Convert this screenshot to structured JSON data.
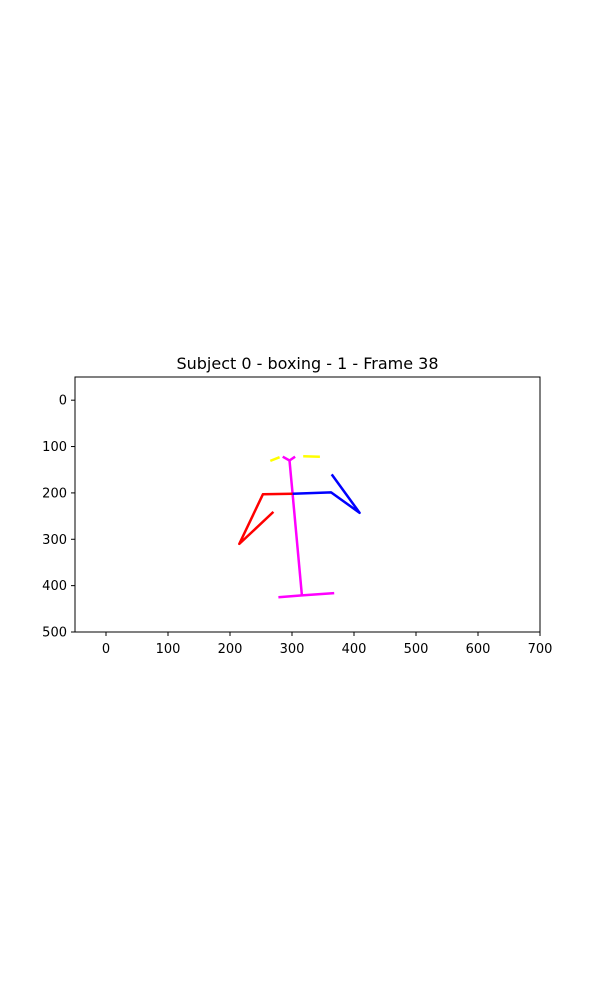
{
  "chart_data": {
    "type": "line",
    "title": "Subject 0 - boxing - 1 - Frame 38",
    "xlim": [
      -50,
      700
    ],
    "ylim": [
      500,
      -50
    ],
    "y_inverted": true,
    "grid": false,
    "x_ticks": [
      0,
      100,
      200,
      300,
      400,
      500,
      600,
      700
    ],
    "y_ticks": [
      0,
      100,
      200,
      300,
      400,
      500
    ],
    "colors": {
      "torso": "#ff00ff",
      "head": "#ffff00",
      "right_arm": "#ff0000",
      "left_arm": "#0000ff"
    },
    "segments": [
      {
        "part": "torso",
        "x": [
          301,
          316
        ],
        "y": [
          202,
          421
        ]
      },
      {
        "part": "torso",
        "x": [
          301,
          296
        ],
        "y": [
          202,
          130
        ]
      },
      {
        "part": "torso",
        "x": [
          296,
          305
        ],
        "y": [
          130,
          122
        ]
      },
      {
        "part": "torso",
        "x": [
          296,
          285
        ],
        "y": [
          130,
          122
        ]
      },
      {
        "part": "torso",
        "x": [
          278,
          316,
          368
        ],
        "y": [
          425,
          421,
          416
        ]
      },
      {
        "part": "head",
        "x": [
          265,
          280
        ],
        "y": [
          131,
          123
        ]
      },
      {
        "part": "head",
        "x": [
          318,
          345
        ],
        "y": [
          121,
          122
        ]
      },
      {
        "part": "right_arm",
        "x": [
          301,
          253,
          215,
          270
        ],
        "y": [
          202,
          203,
          310,
          241
        ]
      },
      {
        "part": "left_arm",
        "x": [
          301,
          363,
          409,
          364
        ],
        "y": [
          202,
          199,
          243,
          160
        ]
      }
    ]
  }
}
